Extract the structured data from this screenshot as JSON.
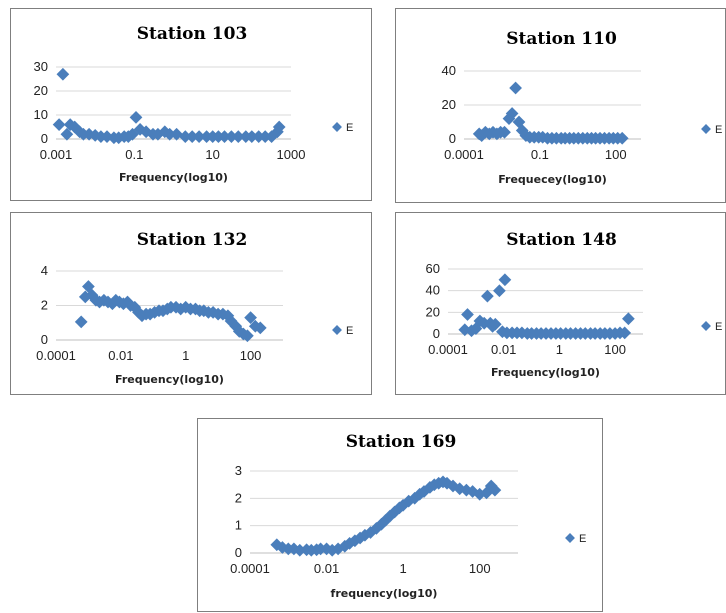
{
  "chart_data": [
    {
      "type": "scatter",
      "title": "Station 103",
      "xlabel": "Frequency(log10)",
      "ylabel": "",
      "x_scale": "log",
      "xlim": [
        0.001,
        1000
      ],
      "ylim": [
        0,
        30
      ],
      "x_ticks": [
        "0.001",
        "0.1",
        "10",
        "1000"
      ],
      "y_ticks": [
        "0",
        "10",
        "20",
        "30"
      ],
      "grid": true,
      "legend_position": "right",
      "series": [
        {
          "name": "E",
          "color": "#4a7ebb",
          "points": [
            [
              0.0012,
              6
            ],
            [
              0.0015,
              27
            ],
            [
              0.0019,
              2
            ],
            [
              0.0023,
              6
            ],
            [
              0.003,
              5
            ],
            [
              0.004,
              3
            ],
            [
              0.005,
              2
            ],
            [
              0.007,
              2
            ],
            [
              0.01,
              1.5
            ],
            [
              0.014,
              1
            ],
            [
              0.02,
              1
            ],
            [
              0.03,
              0.5
            ],
            [
              0.04,
              0.5
            ],
            [
              0.055,
              1
            ],
            [
              0.07,
              1
            ],
            [
              0.09,
              2
            ],
            [
              0.11,
              9
            ],
            [
              0.14,
              4
            ],
            [
              0.2,
              3
            ],
            [
              0.3,
              2
            ],
            [
              0.4,
              2
            ],
            [
              0.6,
              3
            ],
            [
              0.8,
              2
            ],
            [
              1.2,
              2
            ],
            [
              2,
              1
            ],
            [
              3,
              1
            ],
            [
              4.5,
              1
            ],
            [
              7,
              1
            ],
            [
              10,
              1
            ],
            [
              14,
              1
            ],
            [
              20,
              1
            ],
            [
              30,
              1
            ],
            [
              45,
              1
            ],
            [
              70,
              1
            ],
            [
              100,
              1
            ],
            [
              150,
              1
            ],
            [
              220,
              1
            ],
            [
              320,
              1
            ],
            [
              450,
              3
            ],
            [
              500,
              5
            ]
          ]
        }
      ]
    },
    {
      "type": "scatter",
      "title": "Station 110",
      "xlabel": "Frequecey(log10)",
      "ylabel": "",
      "x_scale": "log",
      "xlim": [
        0.0001,
        1000
      ],
      "ylim": [
        0,
        40
      ],
      "x_ticks": [
        "0.0001",
        "0.1",
        "100"
      ],
      "y_ticks": [
        "0",
        "20",
        "40"
      ],
      "grid": true,
      "legend_position": "right",
      "series": [
        {
          "name": "E",
          "color": "#4a7ebb",
          "points": [
            [
              0.0004,
              3
            ],
            [
              0.0005,
              2
            ],
            [
              0.0007,
              4
            ],
            [
              0.001,
              3
            ],
            [
              0.0014,
              4
            ],
            [
              0.002,
              3
            ],
            [
              0.0028,
              4
            ],
            [
              0.004,
              4
            ],
            [
              0.006,
              12
            ],
            [
              0.008,
              15
            ],
            [
              0.011,
              30
            ],
            [
              0.015,
              10
            ],
            [
              0.02,
              5
            ],
            [
              0.028,
              2
            ],
            [
              0.04,
              1
            ],
            [
              0.06,
              1
            ],
            [
              0.09,
              1
            ],
            [
              0.13,
              1
            ],
            [
              0.2,
              0.5
            ],
            [
              0.3,
              0.5
            ],
            [
              0.45,
              0.5
            ],
            [
              0.7,
              0.5
            ],
            [
              1,
              0.5
            ],
            [
              1.5,
              0.5
            ],
            [
              2.2,
              0.5
            ],
            [
              3.3,
              0.5
            ],
            [
              5,
              0.5
            ],
            [
              7.5,
              0.5
            ],
            [
              11,
              0.5
            ],
            [
              16,
              0.5
            ],
            [
              24,
              0.5
            ],
            [
              36,
              0.5
            ],
            [
              55,
              0.5
            ],
            [
              80,
              0.5
            ],
            [
              120,
              0.5
            ],
            [
              180,
              0.5
            ]
          ]
        }
      ]
    },
    {
      "type": "scatter",
      "title": "Station 132",
      "xlabel": "Frequency(log10)",
      "ylabel": "",
      "x_scale": "log",
      "xlim": [
        0.0001,
        1000
      ],
      "ylim": [
        0,
        4
      ],
      "x_ticks": [
        "0.0001",
        "0.01",
        "1",
        "100"
      ],
      "y_ticks": [
        "0",
        "2",
        "4"
      ],
      "grid": true,
      "legend_position": "right",
      "series": [
        {
          "name": "E",
          "color": "#4a7ebb",
          "points": [
            [
              0.0006,
              1.05
            ],
            [
              0.0008,
              2.5
            ],
            [
              0.001,
              3.1
            ],
            [
              0.0013,
              2.6
            ],
            [
              0.0017,
              2.3
            ],
            [
              0.0022,
              2.2
            ],
            [
              0.003,
              2.3
            ],
            [
              0.004,
              2.2
            ],
            [
              0.0055,
              2.1
            ],
            [
              0.007,
              2.3
            ],
            [
              0.009,
              2.2
            ],
            [
              0.012,
              2.1
            ],
            [
              0.016,
              2.2
            ],
            [
              0.02,
              2.0
            ],
            [
              0.027,
              1.9
            ],
            [
              0.035,
              1.6
            ],
            [
              0.045,
              1.4
            ],
            [
              0.06,
              1.5
            ],
            [
              0.08,
              1.5
            ],
            [
              0.11,
              1.6
            ],
            [
              0.15,
              1.7
            ],
            [
              0.2,
              1.7
            ],
            [
              0.27,
              1.8
            ],
            [
              0.35,
              1.9
            ],
            [
              0.5,
              1.9
            ],
            [
              0.7,
              1.8
            ],
            [
              1,
              1.9
            ],
            [
              1.4,
              1.8
            ],
            [
              2,
              1.8
            ],
            [
              2.7,
              1.7
            ],
            [
              3.6,
              1.7
            ],
            [
              5,
              1.6
            ],
            [
              7,
              1.6
            ],
            [
              10,
              1.5
            ],
            [
              14,
              1.5
            ],
            [
              20,
              1.4
            ],
            [
              25,
              1.1
            ],
            [
              35,
              0.8
            ],
            [
              45,
              0.5
            ],
            [
              60,
              0.35
            ],
            [
              80,
              0.25
            ],
            [
              100,
              1.3
            ],
            [
              140,
              0.8
            ],
            [
              200,
              0.7
            ]
          ]
        }
      ]
    },
    {
      "type": "scatter",
      "title": "Station 148",
      "xlabel": "Frequency(log10)",
      "ylabel": "",
      "x_scale": "log",
      "xlim": [
        0.0001,
        1000
      ],
      "ylim": [
        0,
        60
      ],
      "x_ticks": [
        "0.0001",
        "0.01",
        "1",
        "100"
      ],
      "y_ticks": [
        "0",
        "20",
        "40",
        "60"
      ],
      "grid": true,
      "legend_position": "right",
      "series": [
        {
          "name": "E",
          "color": "#4a7ebb",
          "points": [
            [
              0.0004,
              4
            ],
            [
              0.0005,
              18
            ],
            [
              0.0007,
              3
            ],
            [
              0.001,
              5
            ],
            [
              0.0014,
              12
            ],
            [
              0.002,
              10
            ],
            [
              0.0026,
              35
            ],
            [
              0.0033,
              10
            ],
            [
              0.004,
              7
            ],
            [
              0.005,
              9
            ],
            [
              0.007,
              40
            ],
            [
              0.009,
              2
            ],
            [
              0.011,
              50
            ],
            [
              0.013,
              1
            ],
            [
              0.02,
              1
            ],
            [
              0.03,
              1
            ],
            [
              0.045,
              1
            ],
            [
              0.07,
              0.5
            ],
            [
              0.1,
              0.5
            ],
            [
              0.15,
              0.5
            ],
            [
              0.22,
              0.5
            ],
            [
              0.33,
              0.5
            ],
            [
              0.5,
              0.5
            ],
            [
              0.75,
              0.5
            ],
            [
              1.1,
              0.5
            ],
            [
              1.7,
              0.5
            ],
            [
              2.5,
              0.5
            ],
            [
              3.8,
              0.5
            ],
            [
              5.7,
              0.5
            ],
            [
              8.5,
              0.5
            ],
            [
              13,
              0.5
            ],
            [
              19,
              0.5
            ],
            [
              29,
              0.5
            ],
            [
              43,
              0.5
            ],
            [
              65,
              0.5
            ],
            [
              100,
              0.5
            ],
            [
              150,
              1
            ],
            [
              220,
              1
            ],
            [
              300,
              14
            ]
          ]
        }
      ]
    },
    {
      "type": "scatter",
      "title": "Station 169",
      "xlabel": "frequency(log10)",
      "ylabel": "",
      "x_scale": "log",
      "xlim": [
        0.0001,
        1000
      ],
      "ylim": [
        0,
        3
      ],
      "x_ticks": [
        "0.0001",
        "0.01",
        "1",
        "100"
      ],
      "y_ticks": [
        "0",
        "1",
        "2",
        "3"
      ],
      "grid": true,
      "legend_position": "right",
      "series": [
        {
          "name": "E",
          "color": "#4a7ebb",
          "points": [
            [
              0.0005,
              0.3
            ],
            [
              0.0007,
              0.2
            ],
            [
              0.001,
              0.15
            ],
            [
              0.0014,
              0.15
            ],
            [
              0.002,
              0.1
            ],
            [
              0.003,
              0.12
            ],
            [
              0.004,
              0.1
            ],
            [
              0.0055,
              0.12
            ],
            [
              0.007,
              0.15
            ],
            [
              0.01,
              0.15
            ],
            [
              0.014,
              0.1
            ],
            [
              0.02,
              0.15
            ],
            [
              0.03,
              0.25
            ],
            [
              0.04,
              0.35
            ],
            [
              0.055,
              0.45
            ],
            [
              0.075,
              0.55
            ],
            [
              0.1,
              0.65
            ],
            [
              0.14,
              0.75
            ],
            [
              0.2,
              0.9
            ],
            [
              0.27,
              1.05
            ],
            [
              0.35,
              1.2
            ],
            [
              0.45,
              1.35
            ],
            [
              0.6,
              1.5
            ],
            [
              0.8,
              1.65
            ],
            [
              1,
              1.75
            ],
            [
              1.4,
              1.9
            ],
            [
              2,
              2.0
            ],
            [
              2.7,
              2.15
            ],
            [
              3.5,
              2.25
            ],
            [
              5,
              2.4
            ],
            [
              6.5,
              2.5
            ],
            [
              8.5,
              2.55
            ],
            [
              11,
              2.6
            ],
            [
              14,
              2.55
            ],
            [
              20,
              2.45
            ],
            [
              30,
              2.35
            ],
            [
              45,
              2.3
            ],
            [
              65,
              2.25
            ],
            [
              100,
              2.15
            ],
            [
              150,
              2.2
            ],
            [
              200,
              2.45
            ],
            [
              250,
              2.3
            ]
          ]
        }
      ]
    }
  ]
}
